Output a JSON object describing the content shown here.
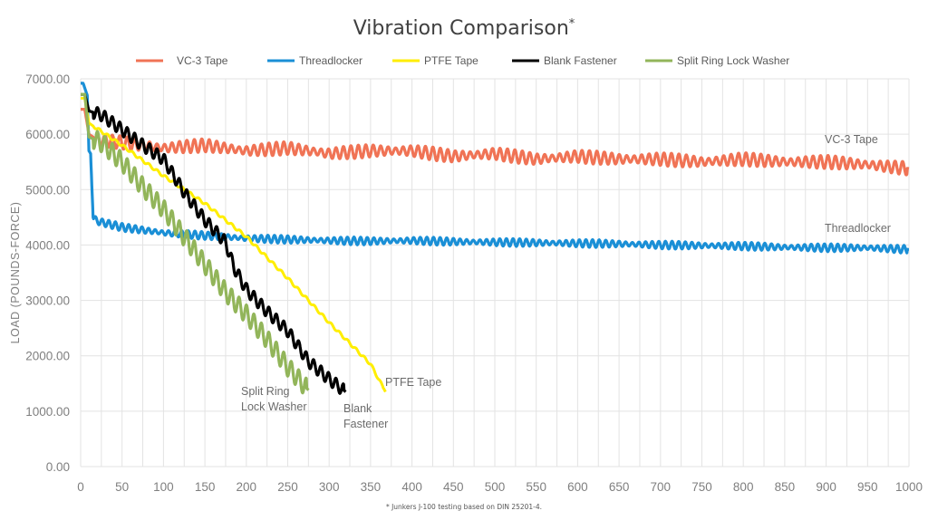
{
  "chart_data": {
    "type": "line",
    "title": "Vibration Comparison",
    "title_suffix": "*",
    "xlabel": "",
    "ylabel": "LOAD (POUNDS-FORCE)",
    "xlim": [
      0,
      1000
    ],
    "ylim": [
      0,
      7000
    ],
    "grid": true,
    "legend_position": "top",
    "x_ticks": [
      "0",
      "50",
      "100",
      "150",
      "200",
      "250",
      "300",
      "350",
      "400",
      "450",
      "500",
      "550",
      "600",
      "650",
      "700",
      "750",
      "800",
      "850",
      "900",
      "950",
      "1000"
    ],
    "y_ticks": [
      "0.00",
      "1000.00",
      "2000.00",
      "3000.00",
      "4000.00",
      "5000.00",
      "6000.00",
      "7000.00"
    ],
    "footnote": "* Junkers J-100 testing based on DIN 25201-4.",
    "series": [
      {
        "name": "VC-3 Tape",
        "color": "#f07355",
        "annotation": "VC-3 Tape",
        "x": [
          0,
          5,
          10,
          20,
          50,
          100,
          150,
          200,
          250,
          300,
          350,
          400,
          450,
          500,
          550,
          600,
          650,
          700,
          750,
          800,
          850,
          900,
          950,
          1000
        ],
        "y": [
          6450,
          6450,
          6000,
          5900,
          5850,
          5750,
          5800,
          5700,
          5750,
          5650,
          5700,
          5700,
          5600,
          5650,
          5550,
          5600,
          5550,
          5550,
          5500,
          5550,
          5500,
          5500,
          5450,
          5380
        ],
        "oscillation_amplitude": 120
      },
      {
        "name": "Threadlocker",
        "color": "#1a8fd6",
        "annotation": "Threadlocker",
        "x": [
          0,
          3,
          8,
          10,
          12,
          15,
          20,
          50,
          100,
          150,
          200,
          250,
          300,
          350,
          400,
          450,
          500,
          550,
          600,
          650,
          700,
          750,
          800,
          850,
          900,
          950,
          1000
        ],
        "y": [
          6920,
          6920,
          6700,
          5700,
          5650,
          4500,
          4430,
          4320,
          4220,
          4170,
          4120,
          4100,
          4080,
          4070,
          4080,
          4060,
          4050,
          4040,
          4030,
          4020,
          4000,
          3990,
          3980,
          3960,
          3950,
          3950,
          3920
        ],
        "oscillation_amplitude": 70
      },
      {
        "name": "PTFE Tape",
        "color": "#ffee00",
        "annotation": "PTFE Tape",
        "x": [
          0,
          5,
          10,
          50,
          100,
          150,
          200,
          250,
          300,
          350,
          368
        ],
        "y": [
          6650,
          6650,
          6200,
          5800,
          5250,
          4750,
          4150,
          3400,
          2600,
          1850,
          1350
        ],
        "oscillation_amplitude": 25
      },
      {
        "name": "Blank Fastener",
        "color": "#000000",
        "annotation": "Blank Fastener",
        "x": [
          0,
          5,
          10,
          25,
          50,
          75,
          100,
          125,
          150,
          175,
          185,
          200,
          225,
          250,
          275,
          300,
          320
        ],
        "y": [
          6720,
          6720,
          6420,
          6350,
          6080,
          5800,
          5550,
          4950,
          4450,
          4050,
          3600,
          3200,
          2800,
          2450,
          1900,
          1580,
          1350
        ],
        "oscillation_amplitude": 110
      },
      {
        "name": "Split Ring Lock Washer",
        "color": "#92b55a",
        "annotation": "Split Ring Lock Washer",
        "x": [
          0,
          5,
          10,
          25,
          50,
          75,
          100,
          125,
          150,
          175,
          200,
          225,
          250,
          275
        ],
        "y": [
          6720,
          6720,
          5950,
          5850,
          5500,
          5050,
          4650,
          4150,
          3650,
          3150,
          2750,
          2300,
          1800,
          1380
        ],
        "oscillation_amplitude": 170
      }
    ]
  }
}
